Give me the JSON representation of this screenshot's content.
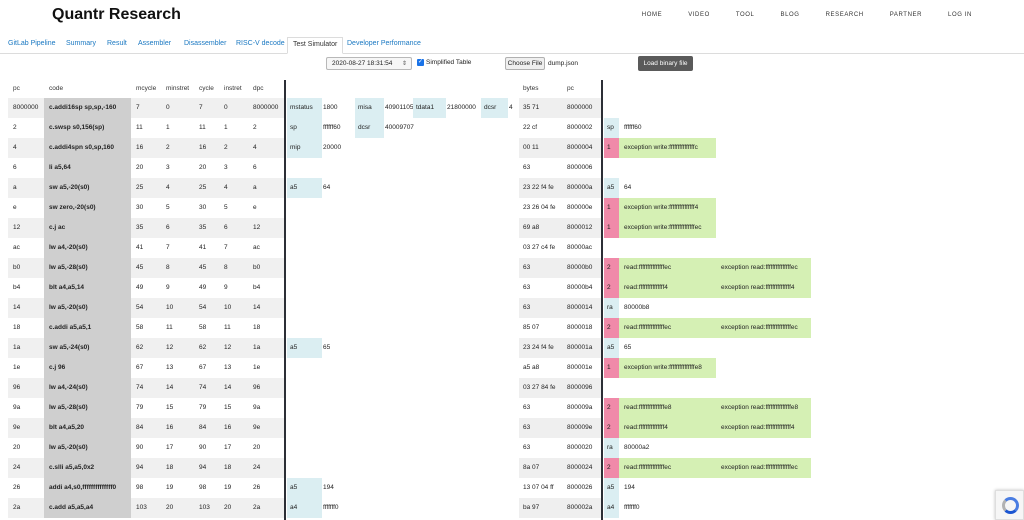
{
  "brand": "Quantr Research",
  "nav": [
    "HOME",
    "VIDEO",
    "TOOL",
    "BLOG",
    "RESEARCH",
    "PARTNER",
    "LOG IN"
  ],
  "tabs": [
    "GitLab Pipeline",
    "Summary",
    "Result",
    "Assembler",
    "Disassembler",
    "RISC-V decode",
    "Test Simulator",
    "Developer Performance"
  ],
  "active_tab": "Test Simulator",
  "controls": {
    "date": "2020-08-27 18:31:54",
    "chevron": "⇕",
    "checkbox_checked": true,
    "checkbox_mark": "✓",
    "checkbox_label": "Simplified Table",
    "choose_file": "Choose File",
    "filename": "dump.json",
    "load_binary": "Load binary file"
  },
  "left_headers": [
    "pc",
    "code",
    "mcycle",
    "minstret",
    "cycle",
    "instret",
    "dpc"
  ],
  "right_headers": [
    "bytes",
    "pc"
  ],
  "rows": [
    {
      "pc": "8000000",
      "code": "c.addi16sp sp,sp,-160",
      "mcycle": "7",
      "minstret": "0",
      "cycle": "7",
      "instret": "0",
      "dpc": "8000000",
      "regs": [
        [
          "mstatus",
          "1800"
        ],
        [
          "misa",
          "40901105"
        ],
        [
          "tdata1",
          "21800000"
        ],
        [
          "dcsr",
          "4"
        ]
      ],
      "bytes": "35 71",
      "rpc": "8000000",
      "ev": []
    },
    {
      "pc": "2",
      "code": "c.swsp s0,156(sp)",
      "mcycle": "11",
      "minstret": "1",
      "cycle": "11",
      "instret": "1",
      "dpc": "2",
      "regs": [
        [
          "sp",
          "ffffff60"
        ],
        [
          "dcsr",
          "40009707"
        ]
      ],
      "bytes": "22 cf",
      "rpc": "8000002",
      "ev": [
        "sp",
        "ffffff60"
      ]
    },
    {
      "pc": "4",
      "code": "c.addi4spn s0,sp,160",
      "mcycle": "16",
      "minstret": "2",
      "cycle": "16",
      "instret": "2",
      "dpc": "4",
      "regs": [
        [
          "mip",
          "20000"
        ]
      ],
      "bytes": "00 11",
      "rpc": "8000004",
      "ev": [
        "1",
        "exception write:fffffffffffffffc"
      ]
    },
    {
      "pc": "6",
      "code": "li a5,64",
      "mcycle": "20",
      "minstret": "3",
      "cycle": "20",
      "instret": "3",
      "dpc": "6",
      "regs": [],
      "bytes": "63",
      "rpc": "8000006",
      "ev": []
    },
    {
      "pc": "a",
      "code": "sw a5,-20(s0)",
      "mcycle": "25",
      "minstret": "4",
      "cycle": "25",
      "instret": "4",
      "dpc": "a",
      "regs": [
        [
          "a5",
          "64"
        ]
      ],
      "bytes": "23 22 f4 fe",
      "rpc": "800000a",
      "ev": [
        "a5",
        "64"
      ]
    },
    {
      "pc": "e",
      "code": "sw zero,-20(s0)",
      "mcycle": "30",
      "minstret": "5",
      "cycle": "30",
      "instret": "5",
      "dpc": "e",
      "regs": [],
      "bytes": "23 26 04 fe",
      "rpc": "800000e",
      "ev": [
        "1",
        "exception write:fffffffffffffff4"
      ]
    },
    {
      "pc": "12",
      "code": "c.j ac",
      "mcycle": "35",
      "minstret": "6",
      "cycle": "35",
      "instret": "6",
      "dpc": "12",
      "regs": [],
      "bytes": "69 a8",
      "rpc": "8000012",
      "ev": [
        "1",
        "exception write:fffffffffffffffec"
      ]
    },
    {
      "pc": "ac",
      "code": "lw a4,-20(s0)",
      "mcycle": "41",
      "minstret": "7",
      "cycle": "41",
      "instret": "7",
      "dpc": "ac",
      "regs": [],
      "bytes": "03 27 c4 fe",
      "rpc": "80000ac",
      "ev": []
    },
    {
      "pc": "b0",
      "code": "lw a5,-28(s0)",
      "mcycle": "45",
      "minstret": "8",
      "cycle": "45",
      "instret": "8",
      "dpc": "b0",
      "regs": [],
      "bytes": "63",
      "rpc": "80000b0",
      "ev": [
        "2",
        "read:fffffffffffffffec",
        "exception read:fffffffffffffffec"
      ]
    },
    {
      "pc": "b4",
      "code": "blt a4,a5,14",
      "mcycle": "49",
      "minstret": "9",
      "cycle": "49",
      "instret": "9",
      "dpc": "b4",
      "regs": [],
      "bytes": "63",
      "rpc": "80000b4",
      "ev": [
        "2",
        "read:fffffffffffffff4",
        "exception read:fffffffffffffff4"
      ]
    },
    {
      "pc": "14",
      "code": "lw a5,-20(s0)",
      "mcycle": "54",
      "minstret": "10",
      "cycle": "54",
      "instret": "10",
      "dpc": "14",
      "regs": [],
      "bytes": "63",
      "rpc": "8000014",
      "ev": [
        "ra",
        "80000b8"
      ]
    },
    {
      "pc": "18",
      "code": "c.addi a5,a5,1",
      "mcycle": "58",
      "minstret": "11",
      "cycle": "58",
      "instret": "11",
      "dpc": "18",
      "regs": [],
      "bytes": "85 07",
      "rpc": "8000018",
      "ev": [
        "2",
        "read:fffffffffffffffec",
        "exception read:fffffffffffffffec"
      ]
    },
    {
      "pc": "1a",
      "code": "sw a5,-24(s0)",
      "mcycle": "62",
      "minstret": "12",
      "cycle": "62",
      "instret": "12",
      "dpc": "1a",
      "regs": [
        [
          "a5",
          "65"
        ]
      ],
      "bytes": "23 24 f4 fe",
      "rpc": "800001a",
      "ev": [
        "a5",
        "65"
      ]
    },
    {
      "pc": "1e",
      "code": "c.j 96",
      "mcycle": "67",
      "minstret": "13",
      "cycle": "67",
      "instret": "13",
      "dpc": "1e",
      "regs": [],
      "bytes": "a5 a8",
      "rpc": "800001e",
      "ev": [
        "1",
        "exception write:fffffffffffffffe8"
      ]
    },
    {
      "pc": "96",
      "code": "lw a4,-24(s0)",
      "mcycle": "74",
      "minstret": "14",
      "cycle": "74",
      "instret": "14",
      "dpc": "96",
      "regs": [],
      "bytes": "03 27 84 fe",
      "rpc": "8000096",
      "ev": []
    },
    {
      "pc": "9a",
      "code": "lw a5,-28(s0)",
      "mcycle": "79",
      "minstret": "15",
      "cycle": "79",
      "instret": "15",
      "dpc": "9a",
      "regs": [],
      "bytes": "63",
      "rpc": "800009a",
      "ev": [
        "2",
        "read:fffffffffffffffe8",
        "exception read:fffffffffffffffe8"
      ]
    },
    {
      "pc": "9e",
      "code": "blt a4,a5,20",
      "mcycle": "84",
      "minstret": "16",
      "cycle": "84",
      "instret": "16",
      "dpc": "9e",
      "regs": [],
      "bytes": "63",
      "rpc": "800009e",
      "ev": [
        "2",
        "read:fffffffffffffff4",
        "exception read:fffffffffffffff4"
      ]
    },
    {
      "pc": "20",
      "code": "lw a5,-20(s0)",
      "mcycle": "90",
      "minstret": "17",
      "cycle": "90",
      "instret": "17",
      "dpc": "20",
      "regs": [],
      "bytes": "63",
      "rpc": "8000020",
      "ev": [
        "ra",
        "80000a2"
      ]
    },
    {
      "pc": "24",
      "code": "c.slli a5,a5,0x2",
      "mcycle": "94",
      "minstret": "18",
      "cycle": "94",
      "instret": "18",
      "dpc": "24",
      "regs": [],
      "bytes": "8a 07",
      "rpc": "8000024",
      "ev": [
        "2",
        "read:fffffffffffffffec",
        "exception read:fffffffffffffffec"
      ]
    },
    {
      "pc": "26",
      "code": "addi a4,s0,ffffffffffffff0",
      "mcycle": "98",
      "minstret": "19",
      "cycle": "98",
      "instret": "19",
      "dpc": "26",
      "regs": [
        [
          "a5",
          "194"
        ]
      ],
      "bytes": "13 07 04 ff",
      "rpc": "8000026",
      "ev": [
        "a5",
        "194"
      ]
    },
    {
      "pc": "2a",
      "code": "c.add a5,a5,a4",
      "mcycle": "103",
      "minstret": "20",
      "cycle": "103",
      "instret": "20",
      "dpc": "2a",
      "regs": [
        [
          "a4",
          "fffffff0"
        ]
      ],
      "bytes": "ba 97",
      "rpc": "800002a",
      "ev": [
        "a4",
        "fffffff0"
      ]
    }
  ]
}
